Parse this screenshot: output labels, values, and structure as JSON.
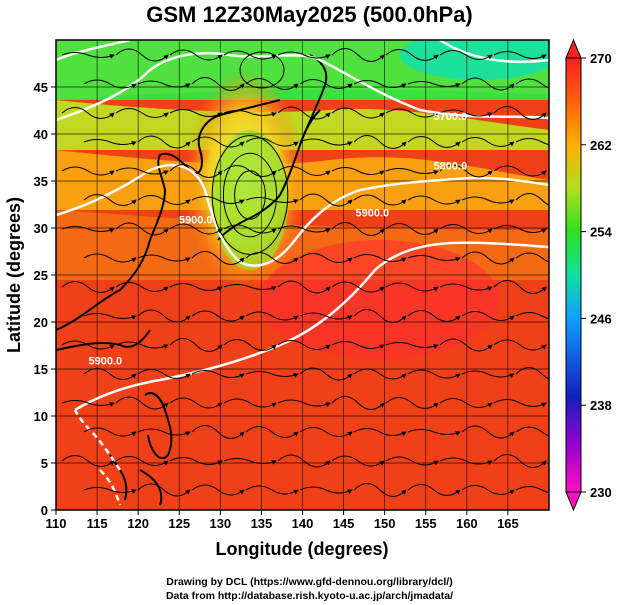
{
  "title": "GSM 12Z30May2025 (500.0hPa)",
  "footer": {
    "line1": "Drawing by DCL (https://www.gfd-dennou.org/library/dcl/)",
    "line2": "Data from http://database.rish.kyoto-u.ac.jp/arch/jmadata/"
  },
  "colors": {
    "cold": "#ff10c0",
    "mid_blue": "#1040ff",
    "mid_green": "#20d020",
    "warm": "#ff2a10",
    "contour": "#ffffff",
    "stream": "#000000"
  },
  "chart_data": {
    "type": "heatmap",
    "xlabel": "Longitude (degrees)",
    "ylabel": "Latitude  (degrees)",
    "xlim": [
      110,
      170
    ],
    "ylim": [
      0,
      50
    ],
    "x_ticks": [
      110,
      115,
      120,
      125,
      130,
      135,
      140,
      145,
      150,
      155,
      160,
      165
    ],
    "y_ticks": [
      0,
      5,
      10,
      15,
      20,
      25,
      30,
      35,
      40,
      45
    ],
    "grid": true,
    "colorbar": {
      "placement": "right",
      "range": [
        230,
        270
      ],
      "ticks": [
        230,
        238,
        246,
        254,
        262,
        270
      ]
    },
    "contour_labels": [
      {
        "text": "5900.0",
        "lon": 116,
        "lat": 15.5
      },
      {
        "text": "5900.0",
        "lon": 127,
        "lat": 30.5
      },
      {
        "text": "5900.0",
        "lon": 148.5,
        "lat": 31.2
      },
      {
        "text": "5800.0",
        "lon": 158,
        "lat": 36.2
      },
      {
        "text": "5700.0",
        "lon": 158,
        "lat": 41.5
      }
    ]
  }
}
